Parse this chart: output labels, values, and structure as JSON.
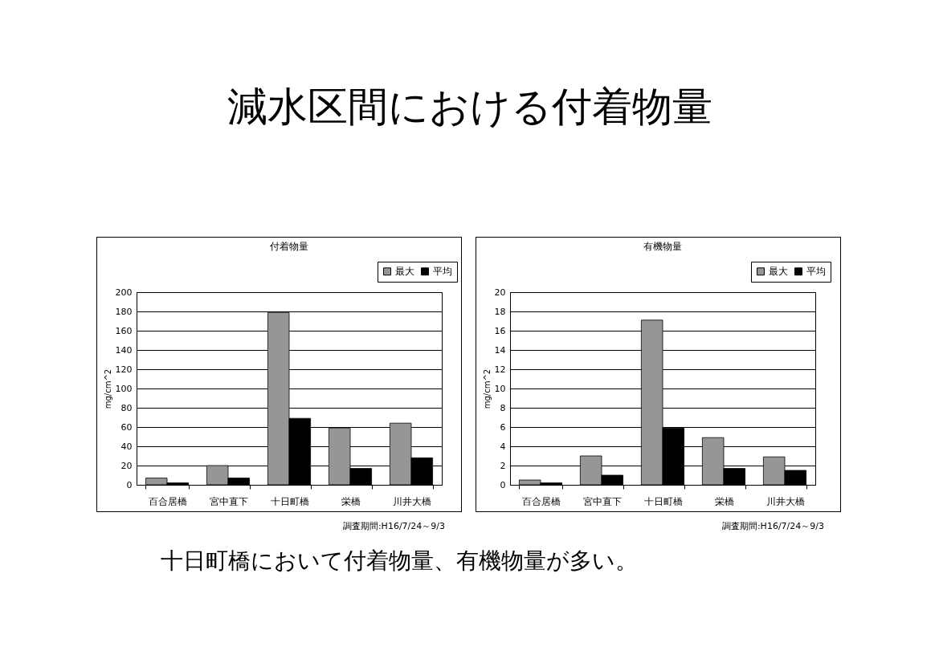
{
  "chart_data": [
    {
      "type": "bar",
      "title": "付着物量",
      "ylabel": "mg/cm^2",
      "categories": [
        "百合居橋",
        "宮中直下",
        "十日町橋",
        "栄橋",
        "川井大橋"
      ],
      "series": [
        {
          "name": "最大",
          "color": "#969696",
          "values": [
            7,
            20,
            179,
            59,
            64
          ]
        },
        {
          "name": "平均",
          "color": "#000000",
          "values": [
            2,
            7,
            69,
            17,
            28
          ]
        }
      ],
      "ylim": [
        0,
        200
      ],
      "yticks": [
        0,
        20,
        40,
        60,
        80,
        100,
        120,
        140,
        160,
        180,
        200
      ],
      "grid": "y",
      "legend": "top right",
      "annotations": [
        "調査期間:H16/7/24～9/3",
        "減水区間における付着物量"
      ]
    },
    {
      "type": "bar",
      "title": "有機物量",
      "ylabel": "mg/cm^2",
      "categories": [
        "百合居橋",
        "宮中直下",
        "十日町橋",
        "栄橋",
        "川井大橋"
      ],
      "series": [
        {
          "name": "最大",
          "color": "#969696",
          "values": [
            0.5,
            3,
            17.1,
            4.9,
            2.9
          ]
        },
        {
          "name": "平均",
          "color": "#000000",
          "values": [
            0.2,
            1,
            5.9,
            1.7,
            1.5
          ]
        }
      ],
      "ylim": [
        0,
        20
      ],
      "yticks": [
        0,
        2,
        4,
        6,
        8,
        10,
        12,
        14,
        16,
        18,
        20
      ],
      "grid": "y",
      "legend": "top right",
      "annotations": [
        "調査期間:H16/7/24～9/3",
        "十日町橋において付着物量、有機物量が多い。"
      ]
    }
  ]
}
